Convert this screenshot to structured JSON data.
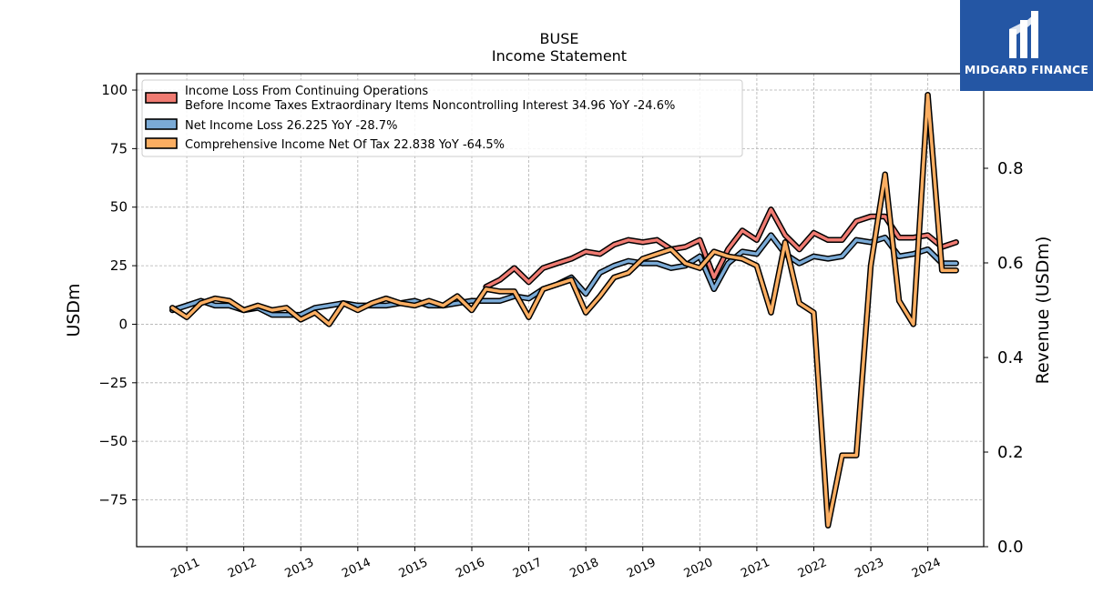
{
  "chart_data": {
    "type": "line",
    "title": "BUSE",
    "subtitle": "Income Statement",
    "ylabel": "USDm",
    "ylabel_right": "Revenue (USDm)",
    "ylim": [
      -95,
      107
    ],
    "ylim_right": [
      0,
      1.0
    ],
    "yticks": [
      -75,
      -50,
      -25,
      0,
      25,
      50,
      75,
      100
    ],
    "yticks_right": [
      0.0,
      0.2,
      0.4,
      0.6,
      0.8
    ],
    "x_labels": [
      "2011",
      "2012",
      "2013",
      "2014",
      "2015",
      "2016",
      "2017",
      "2018",
      "2019",
      "2020",
      "2021",
      "2022",
      "2023",
      "2024"
    ],
    "grid": true,
    "legend_position": "top-left",
    "series": [
      {
        "name": "Income Loss From Continuing Operations\nBefore Income Taxes Extraordinary Items Noncontrolling Interest  34.96 YoY -24.6%",
        "color": "#f07b72",
        "x": [
          "2016-03-31",
          "2016-06-30",
          "2016-09-30",
          "2016-12-31",
          "2017-03-31",
          "2017-06-30",
          "2017-09-30",
          "2017-12-31",
          "2018-03-31",
          "2018-06-30",
          "2018-09-30",
          "2018-12-31",
          "2019-03-31",
          "2019-06-30",
          "2019-09-30",
          "2019-12-31",
          "2020-03-31",
          "2020-06-30",
          "2020-09-30",
          "2020-12-31",
          "2021-03-31",
          "2021-06-30",
          "2021-09-30",
          "2021-12-31",
          "2022-03-31",
          "2022-06-30",
          "2022-09-30",
          "2022-12-31",
          "2023-03-31",
          "2023-06-30",
          "2023-09-30",
          "2023-12-31",
          "2024-03-31",
          "2024-06-30"
        ],
        "values": [
          16,
          19,
          24,
          18,
          24,
          26,
          28,
          31,
          30,
          34,
          36,
          35,
          36,
          32,
          33,
          36,
          20,
          32,
          40,
          36,
          49,
          38,
          32,
          39,
          36,
          36,
          44,
          46,
          46,
          37,
          37,
          38,
          33,
          35
        ]
      },
      {
        "name": "Net Income Loss  26.225 YoY -28.7%",
        "color": "#7aaad6",
        "x": [
          "2010-09-30",
          "2010-12-31",
          "2011-03-31",
          "2011-06-30",
          "2011-09-30",
          "2011-12-31",
          "2012-03-31",
          "2012-06-30",
          "2012-09-30",
          "2012-12-31",
          "2013-03-31",
          "2013-06-30",
          "2013-09-30",
          "2013-12-31",
          "2014-03-31",
          "2014-06-30",
          "2014-09-30",
          "2014-12-31",
          "2015-03-31",
          "2015-06-30",
          "2015-09-30",
          "2015-12-31",
          "2016-03-31",
          "2016-06-30",
          "2016-09-30",
          "2016-12-31",
          "2017-03-31",
          "2017-06-30",
          "2017-09-30",
          "2017-12-31",
          "2018-03-31",
          "2018-06-30",
          "2018-09-30",
          "2018-12-31",
          "2019-03-31",
          "2019-06-30",
          "2019-09-30",
          "2019-12-31",
          "2020-03-31",
          "2020-06-30",
          "2020-09-30",
          "2020-12-31",
          "2021-03-31",
          "2021-06-30",
          "2021-09-30",
          "2021-12-31",
          "2022-03-31",
          "2022-06-30",
          "2022-09-30",
          "2022-12-31",
          "2023-03-31",
          "2023-06-30",
          "2023-09-30",
          "2023-12-31",
          "2024-03-31",
          "2024-06-30"
        ],
        "values": [
          6,
          8,
          10,
          8,
          8,
          6,
          7,
          4,
          4,
          4,
          7,
          8,
          9,
          8,
          8,
          8,
          9,
          10,
          8,
          8,
          9,
          10,
          10,
          10,
          12,
          11,
          15,
          17,
          20,
          13,
          22,
          25,
          27,
          26,
          26,
          24,
          25,
          29,
          15,
          26,
          31,
          30,
          38,
          30,
          26,
          29,
          28,
          29,
          36,
          35,
          37,
          29,
          30,
          32,
          26,
          26
        ]
      },
      {
        "name": "Comprehensive Income Net Of Tax  22.838 YoY -64.5%",
        "color": "#fbae62",
        "x": [
          "2010-09-30",
          "2010-12-31",
          "2011-03-31",
          "2011-06-30",
          "2011-09-30",
          "2011-12-31",
          "2012-03-31",
          "2012-06-30",
          "2012-09-30",
          "2012-12-31",
          "2013-03-31",
          "2013-06-30",
          "2013-09-30",
          "2013-12-31",
          "2014-03-31",
          "2014-06-30",
          "2014-09-30",
          "2014-12-31",
          "2015-03-31",
          "2015-06-30",
          "2015-09-30",
          "2015-12-31",
          "2016-03-31",
          "2016-06-30",
          "2016-09-30",
          "2016-12-31",
          "2017-03-31",
          "2017-06-30",
          "2017-09-30",
          "2017-12-31",
          "2018-03-31",
          "2018-06-30",
          "2018-09-30",
          "2018-12-31",
          "2019-03-31",
          "2019-06-30",
          "2019-09-30",
          "2019-12-31",
          "2020-03-31",
          "2020-06-30",
          "2020-09-30",
          "2020-12-31",
          "2021-03-31",
          "2021-06-30",
          "2021-09-30",
          "2021-12-31",
          "2022-03-31",
          "2022-06-30",
          "2022-09-30",
          "2022-12-31",
          "2023-03-31",
          "2023-06-30",
          "2023-09-30",
          "2023-12-31",
          "2024-03-31",
          "2024-06-30"
        ],
        "values": [
          7,
          3,
          9,
          11,
          10,
          6,
          8,
          6,
          7,
          2,
          5,
          0,
          9,
          6,
          9,
          11,
          9,
          8,
          10,
          8,
          12,
          6,
          15,
          14,
          14,
          3,
          15,
          17,
          19,
          5,
          12,
          20,
          22,
          28,
          30,
          32,
          26,
          24,
          31,
          29,
          28,
          25,
          5,
          35,
          9,
          5,
          -86,
          -56,
          -56,
          25,
          64,
          10,
          0,
          98,
          23,
          23
        ]
      }
    ]
  },
  "logo": {
    "text": "MIDGARD FINANCE"
  }
}
